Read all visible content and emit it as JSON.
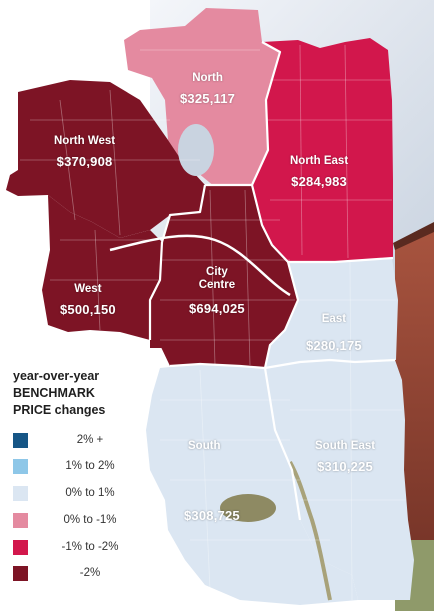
{
  "map": {
    "colors": {
      "up_2_plus": "#165686",
      "up_1_to_2": "#8ec7e8",
      "up_0_to_1": "#dbe6f2",
      "down_0_to_1": "#e48aa0",
      "down_1_to_2": "#d2174c",
      "down_2_plus": "#7d1425"
    },
    "regions": {
      "north": {
        "name": "North",
        "price": "$325,117",
        "color": "#e48aa0"
      },
      "north_west": {
        "name": "North West",
        "price": "$370,908",
        "color": "#7d1425"
      },
      "north_east": {
        "name": "North East",
        "price": "$284,983",
        "color": "#d2174c"
      },
      "west": {
        "name": "West",
        "price": "$500,150",
        "color": "#7d1425"
      },
      "city_centre": {
        "name_line1": "City",
        "name_line2": "Centre",
        "price": "$694,025",
        "color": "#7d1425"
      },
      "east": {
        "name": "East",
        "price": "$280,175",
        "color": "#dbe6f2"
      },
      "south": {
        "name": "South",
        "price": "$308,725",
        "color": "#dbe6f2"
      },
      "south_east": {
        "name": "South East",
        "price": "$310,225",
        "color": "#dbe6f2"
      }
    }
  },
  "legend": {
    "title_line1": "year-over-year",
    "title_line2": "BENCHMARK",
    "title_line3": "PRICE changes",
    "items": [
      {
        "label": "2% +",
        "color": "#165686"
      },
      {
        "label": "1% to 2%",
        "color": "#8ec7e8"
      },
      {
        "label": "0% to 1%",
        "color": "#dbe6f2"
      },
      {
        "label": "0% to -1%",
        "color": "#e48aa0"
      },
      {
        "label": "-1% to -2%",
        "color": "#d2174c"
      },
      {
        "label": "-2%",
        "color": "#7d1425"
      }
    ]
  }
}
